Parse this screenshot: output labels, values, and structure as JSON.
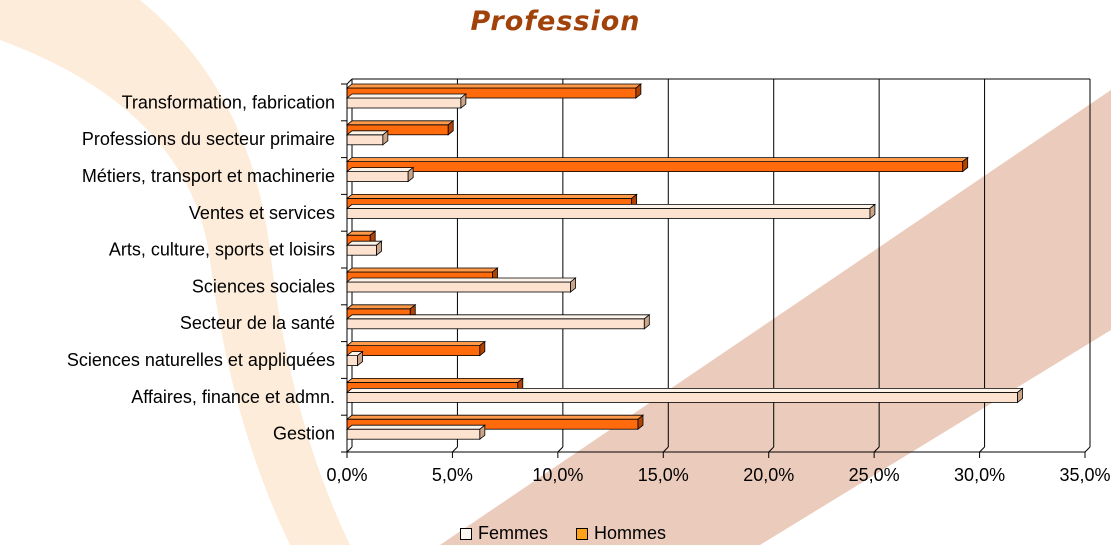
{
  "chart_data": {
    "type": "bar",
    "orientation": "horizontal",
    "title": "Profession",
    "categories": [
      "Transformation, fabrication",
      "Professions du secteur primaire",
      "Métiers, transport et machinerie",
      "Ventes et services",
      "Arts, culture, sports et loisirs",
      "Sciences sociales",
      "Secteur de la santé",
      "Sciences naturelles et appliquées",
      "Affaires, finance et admn.",
      "Gestion"
    ],
    "series": [
      {
        "name": "Femmes",
        "color": "#fde2cf",
        "values": [
          5.4,
          1.7,
          2.9,
          24.8,
          1.4,
          10.6,
          14.1,
          0.5,
          31.8,
          6.3
        ]
      },
      {
        "name": "Hommes",
        "color": "#ff6a0d",
        "values": [
          13.7,
          4.8,
          29.2,
          13.5,
          1.1,
          6.9,
          3.0,
          6.3,
          8.1,
          13.8
        ]
      }
    ],
    "xlim": [
      0,
      35
    ],
    "xticks": [
      "0,0%",
      "5,0%",
      "10,0%",
      "15,0%",
      "20,0%",
      "25,0%",
      "30,0%",
      "35,0%"
    ],
    "grid": true,
    "legend": "bottom"
  }
}
